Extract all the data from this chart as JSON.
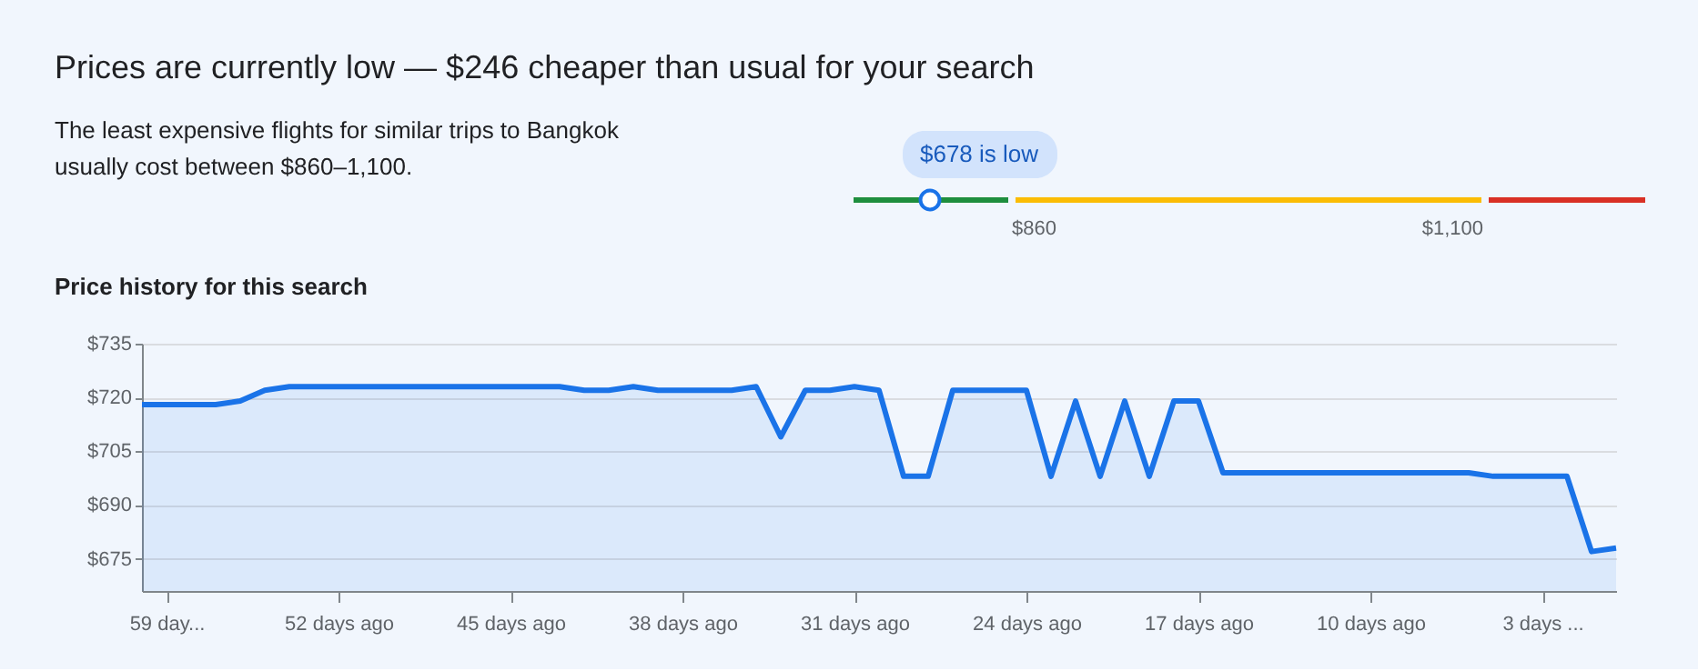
{
  "chart_data": [
    {
      "type": "other",
      "title": "Prices are currently low — $246 cheaper than usual for your search",
      "subtitle": "The least expensive flights for similar trips to Bangkok usually cost between $860–1,100.",
      "categories": [
        null,
        "$860",
        "$1,100"
      ],
      "colors": [
        "#1e8e3e",
        "#fbbc04",
        "#d93025"
      ],
      "annotations": [
        "$678 is low"
      ]
    },
    {
      "type": "area",
      "title": "Price history for this search",
      "x": [
        -60,
        -59,
        -58,
        -57,
        -56,
        -55,
        -54,
        -53,
        -52,
        -51,
        -50,
        -49,
        -48,
        -47,
        -46,
        -45,
        -44,
        -43,
        -42,
        -41,
        -40,
        -39,
        -38,
        -37,
        -36,
        -35,
        -34,
        -33,
        -32,
        -31,
        -30,
        -29,
        -28,
        -27,
        -26,
        -25,
        -24,
        -23,
        -22,
        -21,
        -20,
        -19,
        -18,
        -17,
        -16,
        -15,
        -14,
        -13,
        -12,
        -11,
        -10,
        -9,
        -8,
        -7,
        -6,
        -5,
        -4,
        -3,
        -2,
        -1,
        0
      ],
      "series": [
        {
          "color": "#1a73e8",
          "values": [
            718,
            718,
            718,
            718,
            719,
            722,
            723,
            723,
            723,
            723,
            723,
            723,
            723,
            723,
            723,
            723,
            723,
            723,
            722,
            722,
            723,
            722,
            722,
            722,
            722,
            723,
            709,
            722,
            722,
            723,
            722,
            698,
            698,
            722,
            722,
            722,
            722,
            698,
            719,
            698,
            719,
            698,
            719,
            719,
            699,
            699,
            699,
            699,
            699,
            699,
            699,
            699,
            699,
            699,
            699,
            698,
            698,
            698,
            698,
            677,
            678
          ]
        }
      ],
      "xlim": [
        -60,
        0
      ],
      "ylim": [
        666,
        735
      ],
      "xticks": [
        {
          "value": -59,
          "label": "59 day..."
        },
        {
          "value": -52,
          "label": "52 days ago"
        },
        {
          "value": -45,
          "label": "45 days ago"
        },
        {
          "value": -38,
          "label": "38 days ago"
        },
        {
          "value": -31,
          "label": "31 days ago"
        },
        {
          "value": -24,
          "label": "24 days ago"
        },
        {
          "value": -17,
          "label": "17 days ago"
        },
        {
          "value": -10,
          "label": "10 days ago"
        },
        {
          "value": -3,
          "label": "3 days ..."
        }
      ],
      "yticks": [
        {
          "value": 675,
          "label": "$675"
        },
        {
          "value": 690,
          "label": "$690"
        },
        {
          "value": 705,
          "label": "$705"
        },
        {
          "value": 720,
          "label": "$720"
        },
        {
          "value": 735,
          "label": "$735"
        }
      ],
      "grid": "y"
    }
  ]
}
